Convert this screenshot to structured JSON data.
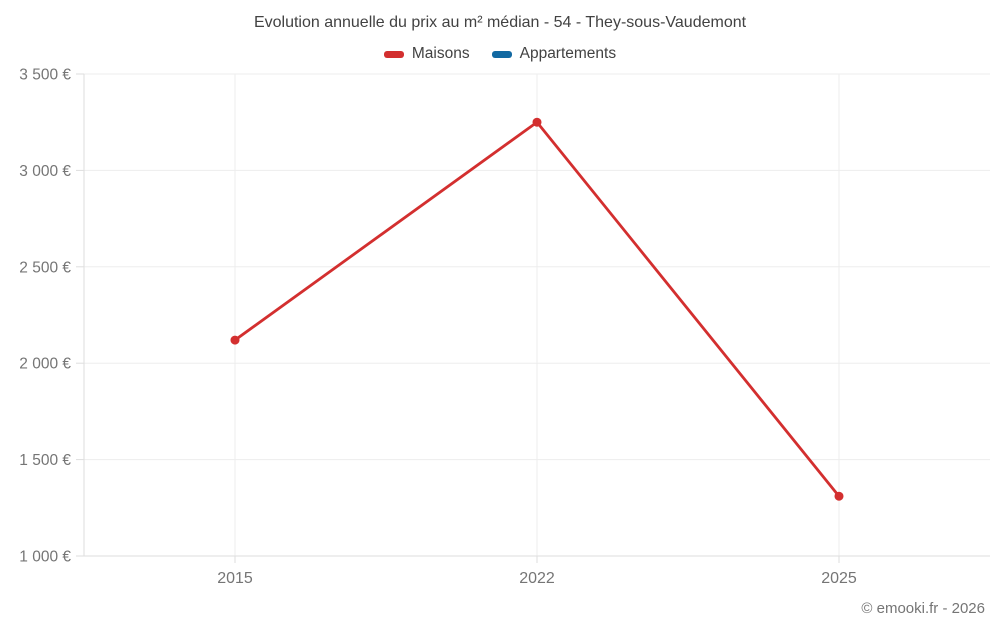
{
  "title": "Evolution annuelle du prix au m² médian - 54 - They-sous-Vaudemont",
  "legend": {
    "items": [
      {
        "label": "Maisons",
        "color": "#d32f2f"
      },
      {
        "label": "Appartements",
        "color": "#1269a2"
      }
    ]
  },
  "attribution": "© emooki.fr - 2026",
  "colors": {
    "grid": "#ededed",
    "axis": "#dedede",
    "tick_label": "#757575",
    "maisons": "#d32f2f",
    "appartements": "#1269a2"
  },
  "chart_data": {
    "type": "line",
    "categories": [
      "2015",
      "2022",
      "2025"
    ],
    "series": [
      {
        "name": "Maisons",
        "color": "#d32f2f",
        "values": [
          2120,
          3250,
          1310
        ]
      },
      {
        "name": "Appartements",
        "color": "#1269a2",
        "values": [
          null,
          null,
          null
        ]
      }
    ],
    "title": "Evolution annuelle du prix au m² médian - 54 - They-sous-Vaudemont",
    "xlabel": "",
    "ylabel": "",
    "ylim": [
      1000,
      3500
    ],
    "yticks": [
      {
        "value": 1000,
        "label": "1 000 €"
      },
      {
        "value": 1500,
        "label": "1 500 €"
      },
      {
        "value": 2000,
        "label": "2 000 €"
      },
      {
        "value": 2500,
        "label": "2 500 €"
      },
      {
        "value": 3000,
        "label": "3 000 €"
      },
      {
        "value": 3500,
        "label": "3 500 €"
      }
    ],
    "grid": true,
    "legend_position": "top",
    "marker_radius": 4.5,
    "line_width": 2.8
  }
}
